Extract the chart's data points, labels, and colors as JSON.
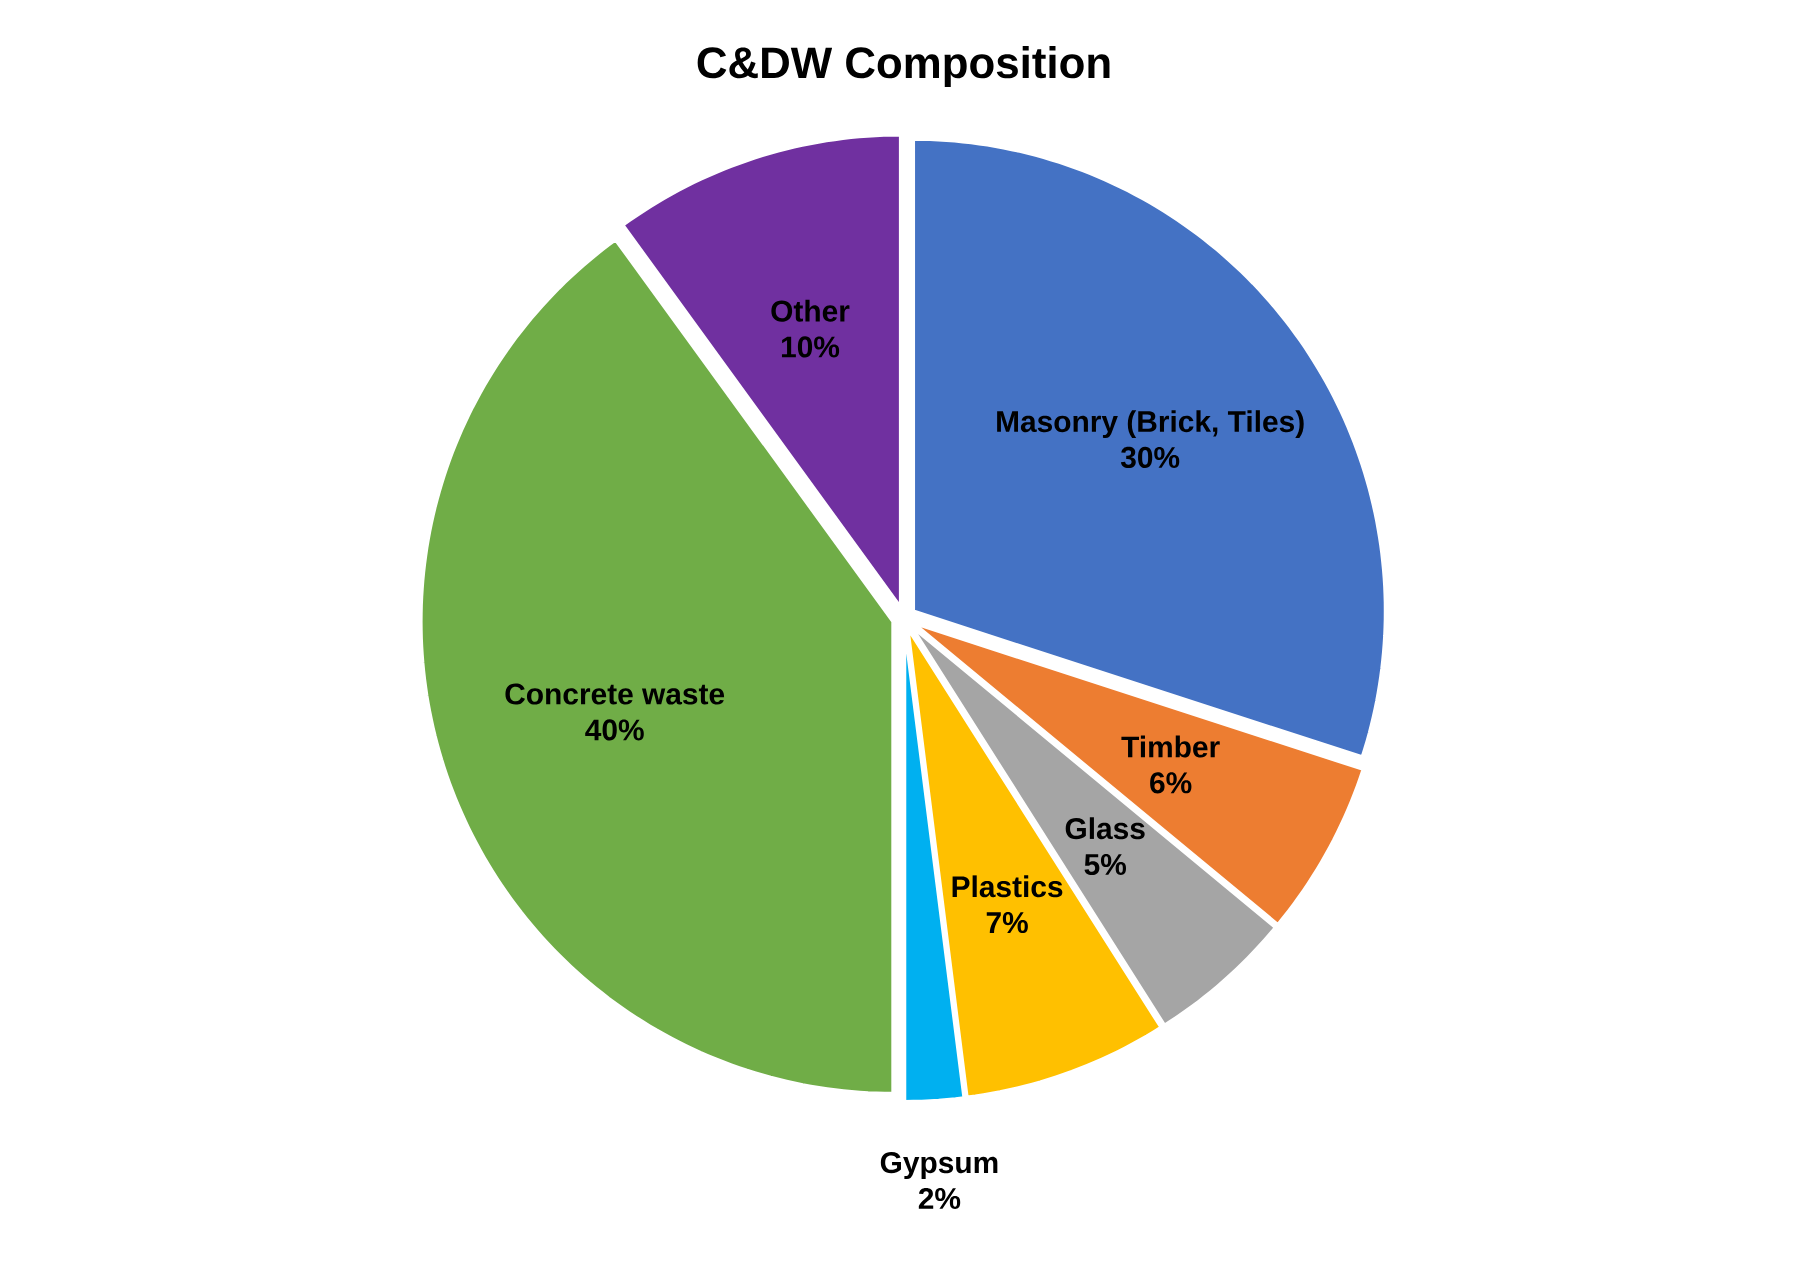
{
  "chart_data": {
    "type": "pie",
    "title": "C&DW Composition",
    "categories": [
      "Masonry (Brick, Tiles)",
      "Timber",
      "Glass",
      "Plastics",
      "Gypsum",
      "Concrete waste",
      "Other"
    ],
    "values": [
      30,
      6,
      5,
      7,
      2,
      40,
      10
    ],
    "value_labels": [
      "30%",
      "6%",
      "5%",
      "7%",
      "2%",
      "40%",
      "10%"
    ],
    "colors": [
      "#4472c4",
      "#ed7d31",
      "#a5a5a5",
      "#ffc000",
      "#00b0f0",
      "#70ad47",
      "#7030a0"
    ]
  }
}
